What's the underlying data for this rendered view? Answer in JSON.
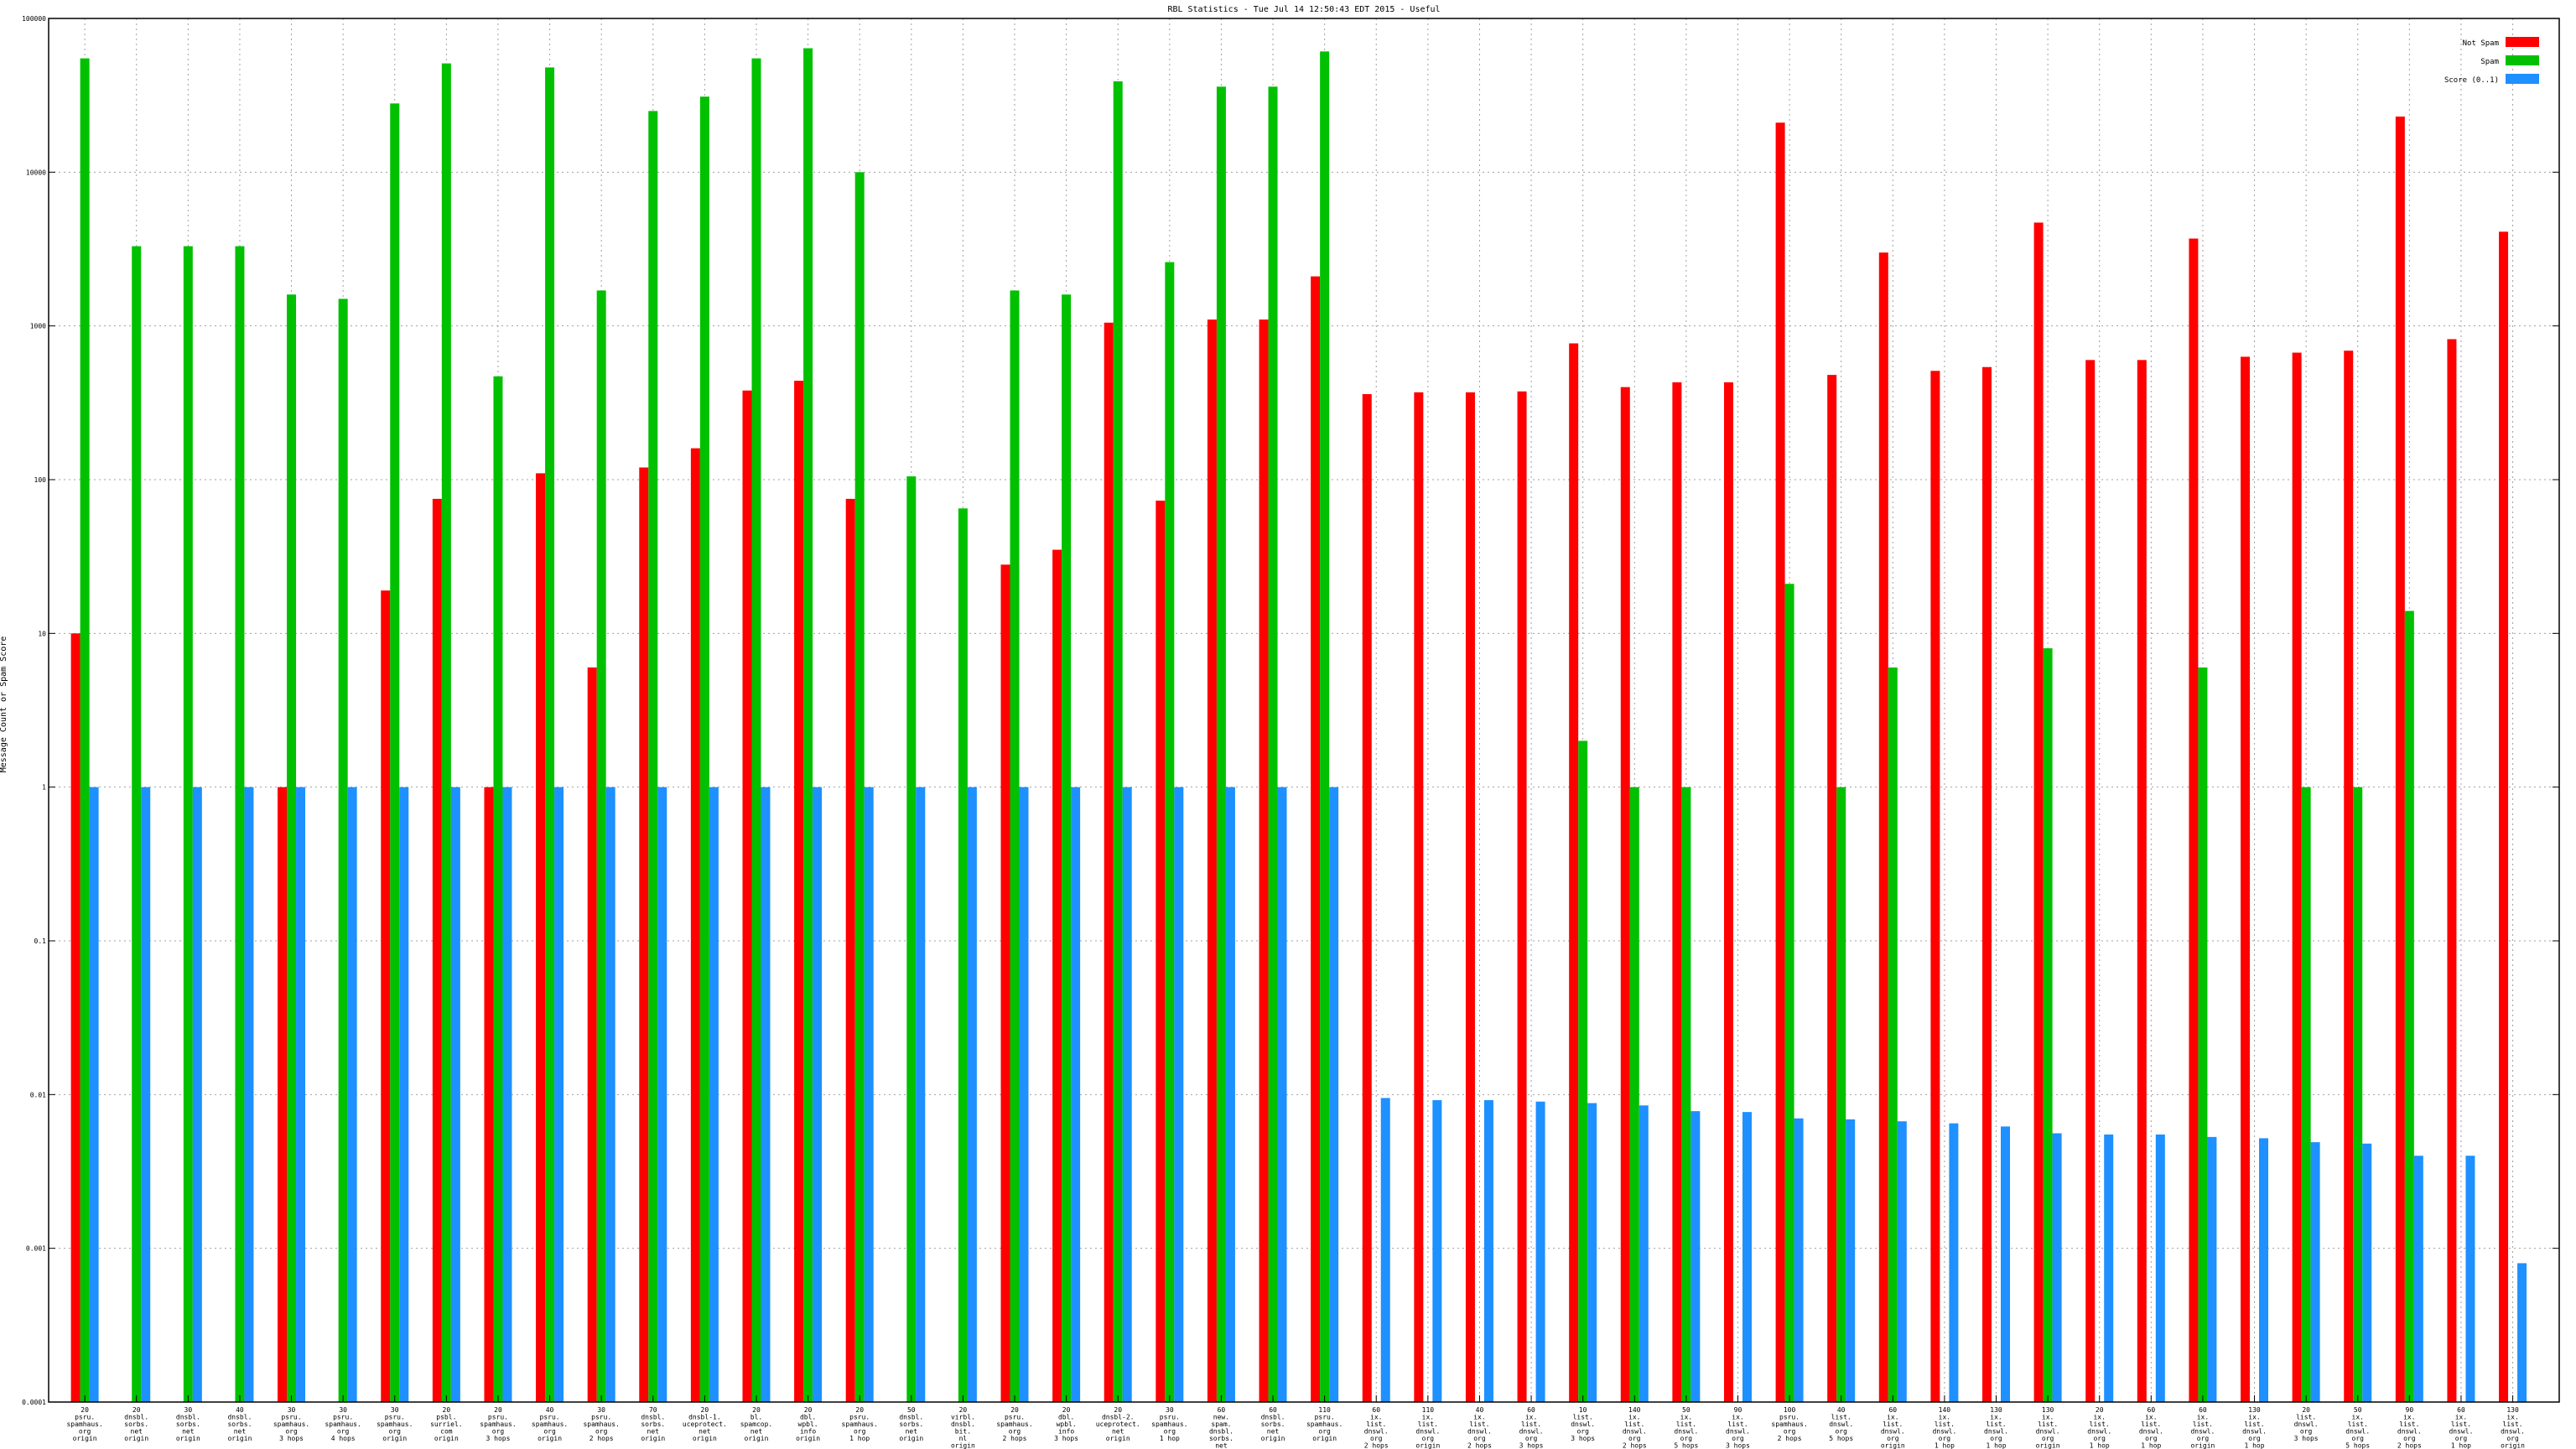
{
  "chart_data": {
    "type": "bar",
    "title": "RBL Statistics - Tue Jul 14 12:50:43 EDT 2015 - Useful",
    "ylabel": "Message Count or Spam Score",
    "xlabel": "",
    "yscale": "log",
    "ylim": [
      0.0001,
      100000
    ],
    "yticks": [
      "0.0001",
      "0.001",
      "0.01",
      "0.1",
      "1",
      "10",
      "100",
      "1000",
      "10000",
      "100000"
    ],
    "grid": true,
    "legend_position": "top-right",
    "categories": [
      "20\npsru.\nspamhaus.\norg\norigin",
      "20\ndnsbl.\nsorbs.\nnet\norigin",
      "30\ndnsbl.\nsorbs.\nnet\norigin",
      "40\ndnsbl.\nsorbs.\nnet\norigin",
      "30\npsru.\nspamhaus.\norg\n3 hops",
      "30\npsru.\nspamhaus.\norg\n4 hops",
      "30\npsru.\nspamhaus.\norg\norigin",
      "20\npsbl.\nsurriel.\ncom\norigin",
      "20\npsru.\nspamhaus.\norg\n3 hops",
      "40\npsru.\nspamhaus.\norg\norigin",
      "30\npsru.\nspamhaus.\norg\n2 hops",
      "70\ndnsbl.\nsorbs.\nnet\norigin",
      "20\ndnsbl-1.\nuceprotect.\nnet\norigin",
      "20\nbl.\nspamcop.\nnet\norigin",
      "20\ndbl.\nwpbl.\ninfo\norigin",
      "20\npsru.\nspamhaus.\norg\n1 hop",
      "50\ndnsbl.\nsorbs.\nnet\norigin",
      "20\nvirbl.\ndnsbl.\nbit.\nnl\norigin",
      "20\npsru.\nspamhaus.\norg\n2 hops",
      "20\ndbl.\nwpbl.\ninfo\n3 hops",
      "20\ndnsbl-2.\nuceprotect.\nnet\norigin",
      "30\npsru.\nspamhaus.\norg\n1 hop",
      "60\nnew.\nspam.\ndnsbl.\nsorbs.\nnet\norigin",
      "60\ndnsbl.\nsorbs.\nnet\norigin",
      "110\npsru.\nspamhaus.\norg\norigin",
      "60\nix.\nlist.\ndnswl.\norg\n2 hops",
      "110\nix.\nlist.\ndnswl.\norg\norigin",
      "40\nix.\nlist.\ndnswl.\norg\n2 hops",
      "60\nix.\nlist.\ndnswl.\norg\n3 hops",
      "10\nlist.\ndnswl.\norg\n3 hops",
      "140\nix.\nlist.\ndnswl.\norg\n2 hops",
      "50\nix.\nlist.\ndnswl.\norg\n5 hops",
      "90\nix.\nlist.\ndnswl.\norg\n3 hops",
      "100\npsru.\nspamhaus.\norg\n2 hops",
      "40\nlist.\ndnswl.\norg\n5 hops",
      "60\nix.\nlist.\ndnswl.\norg\norigin",
      "140\nix.\nlist.\ndnswl.\norg\n1 hop",
      "130\nix.\nlist.\ndnswl.\norg\n1 hop",
      "130\nix.\nlist.\ndnswl.\norg\norigin",
      "20\nix.\nlist.\ndnswl.\norg\n1 hop",
      "60\nix.\nlist.\ndnswl.\norg\n1 hop",
      "60\nix.\nlist.\ndnswl.\norg\norigin",
      "130\nix.\nlist.\ndnswl.\norg\n1 hop",
      "20\nlist.\ndnswl.\norg\n3 hops",
      "50\nix.\nlist.\ndnswl.\norg\n5 hops",
      "90\nix.\nlist.\ndnswl.\norg\n2 hops",
      "60\nix.\nlist.\ndnswl.\norg\n1 hop",
      "130\nix.\nlist.\ndnswl.\norg\norigin"
    ],
    "series": [
      {
        "name": "Not Spam",
        "color": "#ff0000",
        "values": [
          10,
          null,
          null,
          null,
          1,
          null,
          19,
          75,
          1,
          110,
          6,
          120,
          160,
          380,
          440,
          75,
          null,
          null,
          28,
          35,
          1050,
          73,
          1100,
          1100,
          2100,
          360,
          370,
          370,
          375,
          770,
          400,
          430,
          430,
          21000,
          480,
          3000,
          510,
          540,
          4700,
          600,
          600,
          3700,
          630,
          670,
          690,
          23000,
          820,
          4100
        ]
      },
      {
        "name": "Spam",
        "color": "#00c000",
        "values": [
          55000,
          3300,
          3300,
          3300,
          1600,
          1500,
          28000,
          51000,
          470,
          48000,
          1700,
          25000,
          31000,
          55000,
          64000,
          10000,
          105,
          65,
          1700,
          1600,
          39000,
          2600,
          36000,
          36000,
          61000,
          null,
          null,
          null,
          null,
          2,
          1,
          1,
          null,
          21,
          1,
          6,
          null,
          null,
          8,
          null,
          null,
          6,
          null,
          1,
          1,
          14,
          null,
          null
        ]
      },
      {
        "name": "Score (0..1)",
        "color": "#1e90ff",
        "values": [
          1,
          1,
          1,
          1,
          1,
          1,
          1,
          1,
          1,
          1,
          1,
          1,
          1,
          1,
          1,
          1,
          1,
          1,
          1,
          1,
          1,
          1,
          1,
          1,
          1,
          0.0095,
          0.0092,
          0.0092,
          0.009,
          0.0088,
          0.0085,
          0.0078,
          0.0077,
          0.007,
          0.0069,
          0.0067,
          0.0065,
          0.0062,
          0.0056,
          0.0055,
          0.0055,
          0.0053,
          0.0052,
          0.0049,
          0.0048,
          0.004,
          0.004,
          0.0008
        ]
      }
    ]
  }
}
